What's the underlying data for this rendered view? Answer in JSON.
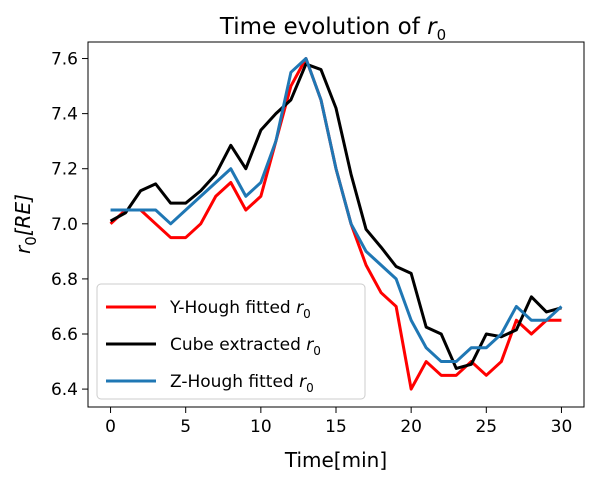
{
  "chart_data": {
    "type": "line",
    "title_main": "Time evolution of ",
    "title_var": "r",
    "title_sub": "0",
    "xlabel": "Time[min]",
    "ylabel_var": "r",
    "ylabel_sub": "0",
    "ylabel_unit": "[RE]",
    "xlim": [
      -1.5,
      31.5
    ],
    "ylim": [
      6.335,
      7.66
    ],
    "xticks": [
      0,
      5,
      10,
      15,
      20,
      25,
      30
    ],
    "yticks": [
      6.4,
      6.6,
      6.8,
      7.0,
      7.2,
      7.4,
      7.6
    ],
    "legend_position": "lower-left",
    "series": [
      {
        "name_prefix": "Y-Hough fitted ",
        "name_var": "r",
        "name_sub": "0",
        "color": "#ff0000",
        "x": [
          0,
          1,
          2,
          3,
          4,
          5,
          6,
          7,
          8,
          9,
          10,
          11,
          12,
          13,
          14,
          15,
          16,
          17,
          18,
          19,
          20,
          21,
          22,
          23,
          24,
          25,
          26,
          27,
          28,
          29,
          30
        ],
        "y": [
          7.0,
          7.05,
          7.05,
          7.0,
          6.95,
          6.95,
          7.0,
          7.1,
          7.15,
          7.05,
          7.1,
          7.3,
          7.5,
          7.6,
          7.45,
          7.2,
          7.0,
          6.85,
          6.75,
          6.7,
          6.4,
          6.5,
          6.45,
          6.45,
          6.5,
          6.45,
          6.5,
          6.65,
          6.6,
          6.65,
          6.65
        ]
      },
      {
        "name_prefix": "Cube extracted ",
        "name_var": "r",
        "name_sub": "0",
        "color": "#000000",
        "x": [
          0,
          1,
          2,
          3,
          4,
          5,
          6,
          7,
          8,
          9,
          10,
          11,
          12,
          13,
          14,
          15,
          16,
          17,
          18,
          19,
          20,
          21,
          22,
          23,
          24,
          25,
          26,
          27,
          28,
          29,
          30
        ],
        "y": [
          7.01,
          7.04,
          7.12,
          7.145,
          7.075,
          7.075,
          7.12,
          7.18,
          7.285,
          7.2,
          7.34,
          7.4,
          7.45,
          7.58,
          7.56,
          7.42,
          7.18,
          6.98,
          6.915,
          6.845,
          6.82,
          6.625,
          6.6,
          6.475,
          6.49,
          6.6,
          6.59,
          6.615,
          6.735,
          6.68,
          6.695
        ]
      },
      {
        "name_prefix": "Z-Hough fitted ",
        "name_var": "r",
        "name_sub": "0",
        "color": "#1f77b4",
        "x": [
          0,
          1,
          2,
          3,
          4,
          5,
          6,
          7,
          8,
          9,
          10,
          11,
          12,
          13,
          14,
          15,
          16,
          17,
          18,
          19,
          20,
          21,
          22,
          23,
          24,
          25,
          26,
          27,
          28,
          29,
          30
        ],
        "y": [
          7.05,
          7.05,
          7.05,
          7.05,
          7.0,
          7.05,
          7.1,
          7.15,
          7.2,
          7.1,
          7.15,
          7.3,
          7.55,
          7.6,
          7.45,
          7.2,
          7.0,
          6.9,
          6.85,
          6.8,
          6.65,
          6.55,
          6.5,
          6.5,
          6.55,
          6.55,
          6.6,
          6.7,
          6.65,
          6.65,
          6.7
        ]
      }
    ]
  }
}
